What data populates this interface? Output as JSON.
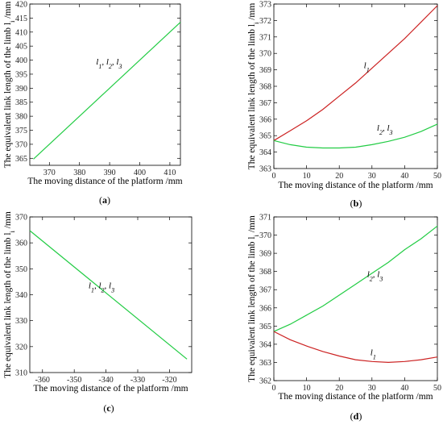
{
  "colors": {
    "green": "#22cc44",
    "red": "#cc2222",
    "frame": "#000000"
  },
  "chart_data": [
    {
      "panel_label": "(a)",
      "type": "line",
      "xlabel": "The moving distance of the platform /mm",
      "ylabel": "The equivalent link length of the limb l",
      "ylabel_sub": "i",
      "ylabel_unit": " /mm",
      "xlim": [
        363.5,
        413.5
      ],
      "ylim": [
        362.5,
        420
      ],
      "xticks": [
        370,
        380,
        390,
        400,
        410
      ],
      "yticks": [
        365,
        370,
        375,
        380,
        385,
        390,
        395,
        400,
        405,
        410,
        415,
        420
      ],
      "series": [
        {
          "color": "green",
          "x": [
            364.7,
            413.5
          ],
          "y": [
            364.7,
            413.5
          ]
        }
      ],
      "annotations": [
        {
          "parts": [
            [
              "l",
              "1"
            ],
            [
              ", l",
              "2"
            ],
            [
              ", l",
              "3"
            ]
          ],
          "x": 385.5,
          "y": 398.5
        }
      ]
    },
    {
      "panel_label": "(b)",
      "type": "line",
      "xlabel": "The moving distance of the platform /mm",
      "ylabel": "The equivalent link length of the limb l",
      "ylabel_sub": "i",
      "ylabel_unit": " /mm",
      "xlim": [
        0,
        50
      ],
      "ylim": [
        363,
        373
      ],
      "xticks": [
        0,
        10,
        20,
        30,
        40,
        50
      ],
      "yticks": [
        363,
        364,
        365,
        366,
        367,
        368,
        369,
        370,
        371,
        372,
        373
      ],
      "series": [
        {
          "color": "red",
          "x": [
            0,
            5,
            10,
            15,
            20,
            25,
            30,
            35,
            40,
            45,
            50
          ],
          "y": [
            364.7,
            365.3,
            365.9,
            366.6,
            367.4,
            368.2,
            369.1,
            370.0,
            370.9,
            371.9,
            372.9
          ]
        },
        {
          "color": "green",
          "x": [
            0,
            5,
            10,
            15,
            20,
            25,
            30,
            35,
            40,
            45,
            50
          ],
          "y": [
            364.7,
            364.45,
            364.3,
            364.25,
            364.25,
            364.3,
            364.45,
            364.65,
            364.9,
            365.25,
            365.7
          ]
        }
      ],
      "annotations": [
        {
          "parts": [
            [
              "l",
              "1"
            ]
          ],
          "x": 27.5,
          "y": 369.1
        },
        {
          "parts": [
            [
              "l",
              "2"
            ],
            [
              ", l",
              "3"
            ]
          ],
          "x": 31.5,
          "y": 365.3
        }
      ]
    },
    {
      "panel_label": "(c)",
      "type": "line",
      "xlabel": "The moving distance of the platform /mm",
      "ylabel": "The equivalent link length of the limb l",
      "ylabel_sub": "i",
      "ylabel_unit": " /mm",
      "xlim": [
        -364,
        -313
      ],
      "ylim": [
        310,
        370
      ],
      "xticks": [
        -360,
        -350,
        -340,
        -330,
        -320
      ],
      "yticks": [
        310,
        320,
        330,
        340,
        350,
        360,
        370
      ],
      "series": [
        {
          "color": "green",
          "x": [
            -364,
            -314.5
          ],
          "y": [
            364.7,
            315.2
          ]
        }
      ],
      "annotations": [
        {
          "parts": [
            [
              "l",
              "1"
            ],
            [
              ", l",
              "2"
            ],
            [
              ", l",
              "3"
            ]
          ],
          "x": -345.5,
          "y": 342.5
        }
      ]
    },
    {
      "panel_label": "(d)",
      "type": "line",
      "xlabel": "The moving distance of the platform /mm",
      "ylabel": "The equivalent link length of the limb l",
      "ylabel_sub": "i",
      "ylabel_unit": " /mm",
      "xlim": [
        0,
        50
      ],
      "ylim": [
        362,
        371
      ],
      "xticks": [
        0,
        10,
        20,
        30,
        40,
        50
      ],
      "yticks": [
        362,
        363,
        364,
        365,
        366,
        367,
        368,
        369,
        370,
        371
      ],
      "series": [
        {
          "color": "green",
          "x": [
            0,
            5,
            10,
            15,
            20,
            25,
            30,
            35,
            40,
            45,
            50
          ],
          "y": [
            364.7,
            365.1,
            365.6,
            366.1,
            366.7,
            367.3,
            367.9,
            368.5,
            369.2,
            369.8,
            370.5
          ]
        },
        {
          "color": "red",
          "x": [
            0,
            5,
            10,
            15,
            20,
            25,
            30,
            35,
            40,
            45,
            50
          ],
          "y": [
            364.7,
            364.25,
            363.9,
            363.6,
            363.35,
            363.15,
            363.05,
            363.0,
            363.05,
            363.15,
            363.3
          ]
        }
      ],
      "annotations": [
        {
          "parts": [
            [
              "l",
              "2"
            ],
            [
              ", l",
              "3"
            ]
          ],
          "x": 28.5,
          "y": 367.7
        },
        {
          "parts": [
            [
              "l",
              "1"
            ]
          ],
          "x": 29.5,
          "y": 363.4
        }
      ]
    }
  ]
}
